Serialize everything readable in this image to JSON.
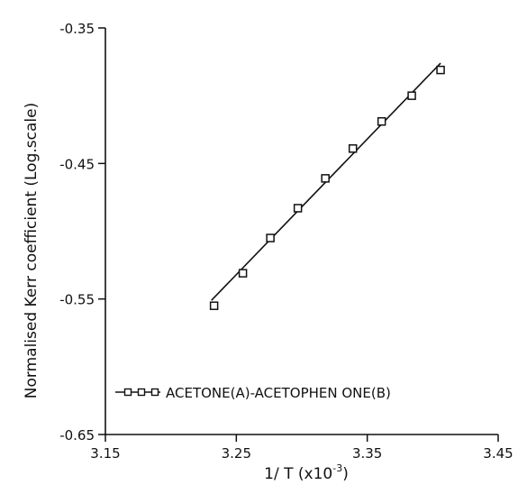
{
  "chart_data": {
    "type": "scatter",
    "title": "",
    "xlabel": "1/ T  (x10",
    "xlabel_exp": "-3",
    "xlabel_close": ")",
    "ylabel": "Normalised  Kerr  coefficient  (Log.scale)",
    "xlim": [
      3.15,
      3.45
    ],
    "ylim": [
      -0.65,
      -0.35
    ],
    "x_ticks": [
      3.15,
      3.25,
      3.35,
      3.45
    ],
    "x_tick_labels": [
      "3.15",
      "3.25",
      "3.35",
      "3.45"
    ],
    "y_ticks": [
      -0.35,
      -0.45,
      -0.55,
      -0.65
    ],
    "y_tick_labels": [
      "-0.35",
      "-0.45",
      "-0.55",
      "-0.65"
    ],
    "grid": false,
    "legend_position": "bottom-left",
    "series": [
      {
        "name": "ACETONE(A)-ACETOPHEN ONE(B)",
        "marker": "square",
        "x": [
          3.233,
          3.255,
          3.276,
          3.297,
          3.318,
          3.339,
          3.361,
          3.384,
          3.406
        ],
        "y": [
          -0.555,
          -0.531,
          -0.505,
          -0.483,
          -0.461,
          -0.439,
          -0.419,
          -0.4,
          -0.381
        ]
      }
    ],
    "fit_line": {
      "x": [
        3.231,
        3.406
      ],
      "y": [
        -0.551,
        -0.376
      ]
    }
  }
}
